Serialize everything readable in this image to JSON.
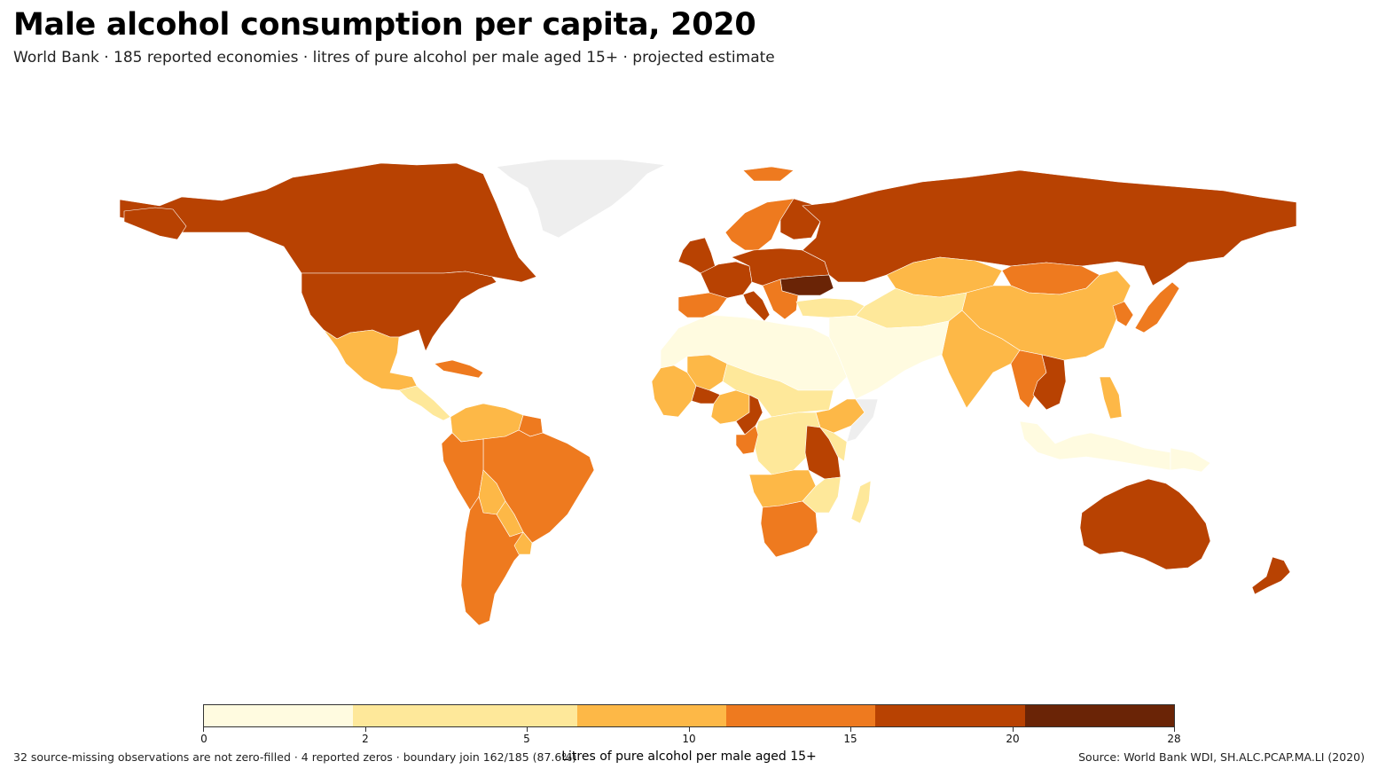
{
  "title": "Male alcohol consumption per capita, 2020",
  "subtitle": "World Bank · 185 reported economies · litres of pure alcohol per male aged 15+ · projected estimate",
  "legend": {
    "title": "Litres of pure alcohol per male aged 15+",
    "breaks": [
      "0",
      "2",
      "5",
      "10",
      "15",
      "20",
      "28"
    ],
    "colors": [
      "#fffbe0",
      "#fee89a",
      "#fdb847",
      "#ee7a1f",
      "#b84202",
      "#6a2406"
    ],
    "missing_color": "#eeeeee"
  },
  "footnote": "32 source-missing observations are not zero-filled · 4 reported zeros · boundary join 162/185 (87.6%)",
  "source": "Source: World Bank WDI, SH.ALC.PCAP.MA.LI (2020)",
  "regions": [
    {
      "name": "Canada",
      "bin": 4
    },
    {
      "name": "United States",
      "bin": 4
    },
    {
      "name": "Greenland",
      "bin": -1
    },
    {
      "name": "Mexico",
      "bin": 2
    },
    {
      "name": "Central America",
      "bin": 1
    },
    {
      "name": "Caribbean",
      "bin": 3
    },
    {
      "name": "Colombia / Venezuela",
      "bin": 2
    },
    {
      "name": "Guianas",
      "bin": 3
    },
    {
      "name": "Brazil",
      "bin": 3
    },
    {
      "name": "Peru",
      "bin": 3
    },
    {
      "name": "Bolivia",
      "bin": 2
    },
    {
      "name": "Paraguay",
      "bin": 2
    },
    {
      "name": "Argentina / Chile",
      "bin": 3
    },
    {
      "name": "Uruguay",
      "bin": 2
    },
    {
      "name": "Iceland",
      "bin": 3
    },
    {
      "name": "Scandinavia",
      "bin": 3
    },
    {
      "name": "Finland",
      "bin": 4
    },
    {
      "name": "United Kingdom / Ireland",
      "bin": 4
    },
    {
      "name": "Western Europe",
      "bin": 4
    },
    {
      "name": "Central Europe",
      "bin": 4
    },
    {
      "name": "Romania / Moldova",
      "bin": 5
    },
    {
      "name": "Spain / Portugal",
      "bin": 3
    },
    {
      "name": "Italy",
      "bin": 4
    },
    {
      "name": "Balkans",
      "bin": 3
    },
    {
      "name": "Turkey",
      "bin": 1
    },
    {
      "name": "Russia",
      "bin": 4
    },
    {
      "name": "Kazakhstan",
      "bin": 2
    },
    {
      "name": "Central Asia",
      "bin": 1
    },
    {
      "name": "Mongolia",
      "bin": 3
    },
    {
      "name": "China",
      "bin": 2
    },
    {
      "name": "Korea",
      "bin": 3
    },
    {
      "name": "Japan",
      "bin": 3
    },
    {
      "name": "India",
      "bin": 2
    },
    {
      "name": "Middle East",
      "bin": 0
    },
    {
      "name": "North Africa",
      "bin": 0
    },
    {
      "name": "Mali",
      "bin": 2
    },
    {
      "name": "West Africa",
      "bin": 2
    },
    {
      "name": "Burkina Faso",
      "bin": 4
    },
    {
      "name": "Nigeria",
      "bin": 2
    },
    {
      "name": "Cameroon",
      "bin": 4
    },
    {
      "name": "Chad / Sudan",
      "bin": 1
    },
    {
      "name": "Ethiopia",
      "bin": 2
    },
    {
      "name": "Somalia",
      "bin": -1
    },
    {
      "name": "Central Africa",
      "bin": 1
    },
    {
      "name": "Gabon / Congo",
      "bin": 3
    },
    {
      "name": "Uganda / Tanzania",
      "bin": 4
    },
    {
      "name": "Kenya",
      "bin": 1
    },
    {
      "name": "Angola / Zambia",
      "bin": 2
    },
    {
      "name": "Southern Africa",
      "bin": 3
    },
    {
      "name": "Mozambique",
      "bin": 1
    },
    {
      "name": "Madagascar",
      "bin": 1
    },
    {
      "name": "Southeast Asia mainland",
      "bin": 3
    },
    {
      "name": "Laos / Vietnam",
      "bin": 4
    },
    {
      "name": "Philippines",
      "bin": 2
    },
    {
      "name": "Indonesia / Malaysia",
      "bin": 0
    },
    {
      "name": "Papua New Guinea",
      "bin": 0
    },
    {
      "name": "Australia",
      "bin": 4
    },
    {
      "name": "New Zealand",
      "bin": 4
    }
  ]
}
